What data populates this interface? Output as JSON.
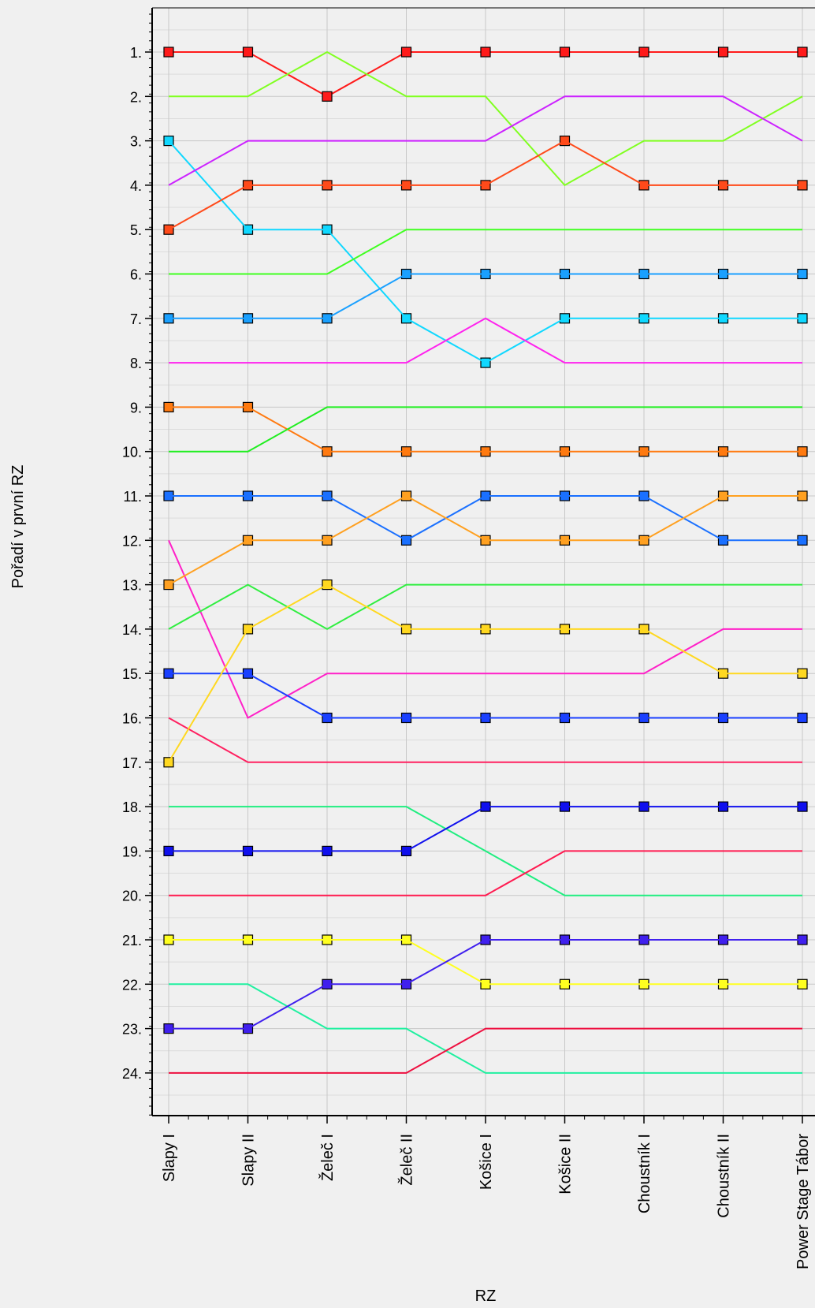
{
  "chart_data": {
    "type": "line",
    "xlabel": "RZ",
    "ylabel": "Pořadí v první RZ",
    "categories": [
      "Slapy I",
      "Slapy II",
      "Želeč I",
      "Želeč II",
      "Košice I",
      "Košice II",
      "Choustník I",
      "Choustník II",
      "Power Stage Tábor"
    ],
    "y_tick_labels": [
      "1.",
      "2.",
      "3.",
      "4.",
      "5.",
      "6.",
      "7.",
      "8.",
      "9.",
      "10.",
      "11.",
      "12.",
      "13.",
      "14.",
      "15.",
      "16.",
      "17.",
      "18.",
      "19.",
      "20.",
      "21.",
      "22.",
      "23.",
      "24."
    ],
    "ylim": [
      0,
      25
    ],
    "y_inverted": true,
    "grid": true,
    "legend": "none",
    "series": [
      {
        "color": "#ff1a1a",
        "values": [
          1,
          1,
          2,
          1,
          1,
          1,
          1,
          1,
          1
        ]
      },
      {
        "color": "#80ff20",
        "values": [
          2,
          2,
          1,
          2,
          2,
          4,
          3,
          3,
          2
        ]
      },
      {
        "color": "#10d8ff",
        "values": [
          3,
          5,
          5,
          7,
          8,
          7,
          7,
          7,
          7
        ]
      },
      {
        "color": "#cc22ff",
        "values": [
          4,
          3,
          3,
          3,
          3,
          2,
          2,
          2,
          3
        ]
      },
      {
        "color": "#ff4a1a",
        "values": [
          5,
          4,
          4,
          4,
          4,
          3,
          4,
          4,
          4
        ]
      },
      {
        "color": "#40ff20",
        "values": [
          6,
          6,
          6,
          5,
          5,
          5,
          5,
          5,
          5
        ]
      },
      {
        "color": "#1aa0ff",
        "values": [
          7,
          7,
          7,
          6,
          6,
          6,
          6,
          6,
          6
        ]
      },
      {
        "color": "#ff22ee",
        "values": [
          8,
          8,
          8,
          8,
          7,
          8,
          8,
          8,
          8
        ]
      },
      {
        "color": "#ff7a10",
        "values": [
          9,
          9,
          10,
          10,
          10,
          10,
          10,
          10,
          10
        ]
      },
      {
        "color": "#20ee20",
        "values": [
          10,
          10,
          9,
          9,
          9,
          9,
          9,
          9,
          9
        ]
      },
      {
        "color": "#1a70ff",
        "values": [
          11,
          11,
          11,
          12,
          11,
          11,
          11,
          12,
          12
        ]
      },
      {
        "color": "#ff20c8",
        "values": [
          12,
          16,
          15,
          15,
          15,
          15,
          15,
          14,
          14
        ]
      },
      {
        "color": "#ffa020",
        "values": [
          13,
          12,
          12,
          11,
          12,
          12,
          12,
          11,
          11
        ]
      },
      {
        "color": "#30ee40",
        "values": [
          14,
          13,
          14,
          13,
          13,
          13,
          13,
          13,
          13
        ]
      },
      {
        "color": "#1a40ff",
        "values": [
          15,
          15,
          16,
          16,
          16,
          16,
          16,
          16,
          16
        ]
      },
      {
        "color": "#ff2060",
        "values": [
          16,
          17,
          17,
          17,
          17,
          17,
          17,
          17,
          17
        ]
      },
      {
        "color": "#ffd820",
        "values": [
          17,
          14,
          13,
          14,
          14,
          14,
          14,
          15,
          15
        ]
      },
      {
        "color": "#20ee80",
        "values": [
          18,
          18,
          18,
          18,
          19,
          20,
          20,
          20,
          20
        ]
      },
      {
        "color": "#1010ee",
        "values": [
          19,
          19,
          19,
          19,
          18,
          18,
          18,
          18,
          18
        ]
      },
      {
        "color": "#ff1a50",
        "values": [
          20,
          20,
          20,
          20,
          20,
          19,
          19,
          19,
          19
        ]
      },
      {
        "color": "#ffff20",
        "values": [
          21,
          21,
          21,
          21,
          22,
          22,
          22,
          22,
          22
        ]
      },
      {
        "color": "#20f0a0",
        "values": [
          22,
          22,
          23,
          23,
          24,
          24,
          24,
          24,
          24
        ]
      },
      {
        "color": "#4020ee",
        "values": [
          23,
          23,
          22,
          22,
          21,
          21,
          21,
          21,
          21
        ]
      },
      {
        "color": "#ee1040",
        "values": [
          24,
          24,
          24,
          24,
          23,
          23,
          23,
          23,
          23
        ]
      }
    ]
  }
}
